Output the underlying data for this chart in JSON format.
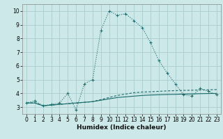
{
  "xlabel": "Humidex (Indice chaleur)",
  "bg_color": "#cce8e8",
  "grid_color": "#aacccc",
  "line_color": "#1a6b6b",
  "xlim": [
    -0.5,
    23.5
  ],
  "ylim": [
    2.5,
    10.5
  ],
  "xticks": [
    0,
    1,
    2,
    3,
    4,
    5,
    6,
    7,
    8,
    9,
    10,
    11,
    12,
    13,
    14,
    15,
    16,
    17,
    18,
    19,
    20,
    21,
    22,
    23
  ],
  "yticks": [
    3,
    4,
    5,
    6,
    7,
    8,
    9,
    10
  ],
  "series1_x": [
    0,
    1,
    2,
    3,
    4,
    5,
    6,
    7,
    8,
    9,
    10,
    11,
    12,
    13,
    14,
    15,
    16,
    17,
    18,
    19,
    20,
    21,
    22,
    23
  ],
  "series1_y": [
    3.3,
    3.45,
    3.1,
    3.2,
    3.3,
    4.0,
    2.8,
    4.7,
    5.0,
    8.6,
    10.0,
    9.7,
    9.8,
    9.3,
    8.8,
    7.7,
    6.4,
    5.5,
    4.7,
    3.9,
    3.8,
    4.35,
    4.15,
    3.9
  ],
  "series2_x": [
    0,
    1,
    2,
    3,
    4,
    5,
    6,
    7,
    8,
    9,
    10,
    11,
    12,
    13,
    14,
    15,
    16,
    17,
    18,
    19,
    20,
    21,
    22,
    23
  ],
  "series2_y": [
    3.3,
    3.3,
    3.1,
    3.15,
    3.2,
    3.25,
    3.3,
    3.35,
    3.4,
    3.5,
    3.6,
    3.7,
    3.75,
    3.8,
    3.85,
    3.88,
    3.9,
    3.92,
    3.93,
    3.95,
    3.96,
    3.98,
    3.99,
    4.0
  ],
  "series3_x": [
    0,
    1,
    2,
    3,
    4,
    5,
    6,
    7,
    8,
    9,
    10,
    11,
    12,
    13,
    14,
    15,
    16,
    17,
    18,
    19,
    20,
    21,
    22,
    23
  ],
  "series3_y": [
    3.3,
    3.32,
    3.1,
    3.15,
    3.2,
    3.25,
    3.3,
    3.35,
    3.4,
    3.55,
    3.7,
    3.85,
    3.95,
    4.05,
    4.1,
    4.12,
    4.15,
    4.18,
    4.2,
    4.22,
    4.23,
    4.25,
    4.26,
    4.28
  ],
  "tick_fontsize": 5.5,
  "xlabel_fontsize": 6.5
}
